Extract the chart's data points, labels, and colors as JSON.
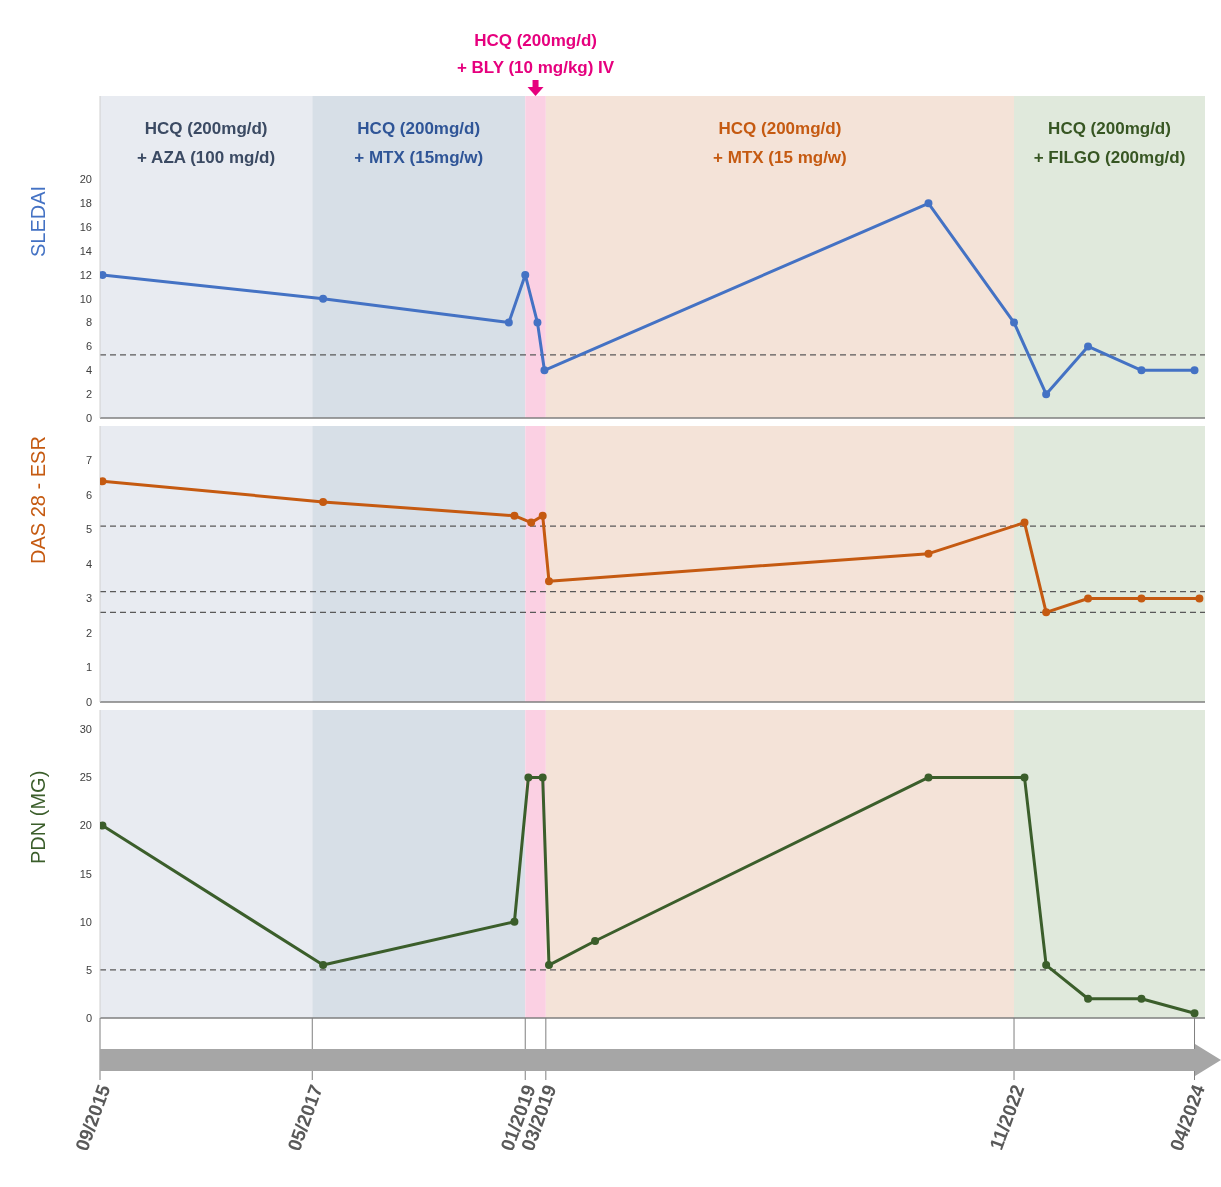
{
  "chart_data": [
    {
      "type": "line",
      "ylabel": "SLEDAI",
      "xlim": [
        "2015-09",
        "2024-05"
      ],
      "ylim": [
        0,
        27
      ],
      "yticks": [
        0,
        2,
        4,
        6,
        8,
        10,
        12,
        14,
        16,
        18,
        20
      ],
      "tick_labels": "y",
      "marker": "circle",
      "line_style": "solid",
      "series": [
        {
          "color": "#4472c4",
          "x": [
            "2015-09-08",
            "2017-06",
            "2018-11-15",
            "2019-01",
            "2019-02-05",
            "2019-02-25",
            "2022-03",
            "2022-11",
            "2023-02",
            "2023-06",
            "2023-11",
            "2024-04"
          ],
          "values": [
            12,
            10,
            8,
            12,
            8,
            4,
            18,
            8,
            2,
            6,
            4,
            4
          ]
        }
      ],
      "ref_lines": [
        {
          "axis": "y",
          "value": 5.3,
          "label": null,
          "color": "#595959",
          "line_style": "dashed"
        }
      ],
      "bands": [
        {
          "axis": "x",
          "from": "2015-09",
          "to": "2017-05",
          "label": "HCQ (200mg/d)\n+ AZA (100 mg/d)",
          "color": "#e8ebf1"
        },
        {
          "axis": "x",
          "from": "2017-05",
          "to": "2019-01",
          "label": "HCQ (200mg/d)\n+ MTX (15mg/w)",
          "color": "#d7dfe7"
        },
        {
          "axis": "x",
          "from": "2019-01",
          "to": "2019-03",
          "label": "HCQ (200mg/d)\n+ BLY (10 mg/kg) IV",
          "color": "#fbd0e3"
        },
        {
          "axis": "x",
          "from": "2019-03",
          "to": "2022-11",
          "label": "HCQ (200mg/d)\n+ MTX (15 mg/w)",
          "color": "#f4e3d8"
        },
        {
          "axis": "x",
          "from": "2022-11",
          "to": "2024-05",
          "label": "HCQ (200mg/d)\n+ FILGO (200mg/d)",
          "color": "#e0e9dc"
        }
      ]
    },
    {
      "type": "line",
      "ylabel": "DAS 28 - ESR",
      "xlim": [
        "2015-09",
        "2024-05"
      ],
      "ylim": [
        0,
        8
      ],
      "yticks": [
        0,
        1,
        2,
        3,
        4,
        5,
        6,
        7
      ],
      "tick_labels": "y",
      "marker": "circle",
      "line_style": "solid",
      "series": [
        {
          "color": "#c55a11",
          "x": [
            "2015-09-08",
            "2017-06",
            "2018-12",
            "2019-01-18",
            "2019-02-20",
            "2019-03-10",
            "2022-03",
            "2022-12",
            "2023-02",
            "2023-06",
            "2023-11",
            "2024-04-15"
          ],
          "values": [
            6.4,
            5.8,
            5.4,
            5.2,
            5.4,
            3.5,
            4.3,
            5.2,
            2.6,
            3,
            3,
            3
          ]
        }
      ],
      "ref_lines": [
        {
          "axis": "y",
          "value": 5.1,
          "label": null,
          "color": "#595959",
          "line_style": "dashed"
        },
        {
          "axis": "y",
          "value": 3.2,
          "label": null,
          "color": "#595959",
          "line_style": "dashed"
        },
        {
          "axis": "y",
          "value": 2.6,
          "label": null,
          "color": "#595959",
          "line_style": "dashed"
        }
      ],
      "bands": [
        {
          "axis": "x",
          "from": "2015-09",
          "to": "2017-05",
          "label": null,
          "color": "#e8ebf1"
        },
        {
          "axis": "x",
          "from": "2017-05",
          "to": "2019-01",
          "label": null,
          "color": "#d7dfe7"
        },
        {
          "axis": "x",
          "from": "2019-01",
          "to": "2019-03",
          "label": null,
          "color": "#fbd0e3"
        },
        {
          "axis": "x",
          "from": "2019-03",
          "to": "2022-11",
          "label": null,
          "color": "#f4e3d8"
        },
        {
          "axis": "x",
          "from": "2022-11",
          "to": "2024-05",
          "label": null,
          "color": "#e0e9dc"
        }
      ]
    },
    {
      "type": "line",
      "ylabel": "PDN (MG)",
      "xlim": [
        "2015-09",
        "2024-05"
      ],
      "xticks": [
        {
          "value": "2015-09",
          "label": "09/2015"
        },
        {
          "value": "2017-05",
          "label": "05/2017"
        },
        {
          "value": "2019-01",
          "label": "01/2019"
        },
        {
          "value": "2019-03",
          "label": "03/2019"
        },
        {
          "value": "2022-11",
          "label": "11/2022"
        },
        {
          "value": "2024-04",
          "label": "04/2024"
        }
      ],
      "ylim": [
        0,
        32
      ],
      "yticks": [
        0,
        5,
        10,
        15,
        20,
        25,
        30
      ],
      "marker": "circle",
      "line_style": "solid",
      "series": [
        {
          "color": "#3b5e2b",
          "x": [
            "2015-09-08",
            "2017-06",
            "2018-12",
            "2019-01-10",
            "2019-02-20",
            "2019-03-10",
            "2019-07-20",
            "2022-03",
            "2022-12",
            "2023-02",
            "2023-06",
            "2023-11",
            "2024-04"
          ],
          "values": [
            20,
            5.5,
            10,
            25,
            25,
            5.5,
            8,
            25,
            25,
            5.5,
            2,
            2,
            0.5
          ]
        }
      ],
      "ref_lines": [
        {
          "axis": "y",
          "value": 5,
          "label": null,
          "color": "#595959",
          "line_style": "dashed"
        }
      ],
      "bands": [
        {
          "axis": "x",
          "from": "2015-09",
          "to": "2017-05",
          "label": null,
          "color": "#e8ebf1"
        },
        {
          "axis": "x",
          "from": "2017-05",
          "to": "2019-01",
          "label": null,
          "color": "#d7dfe7"
        },
        {
          "axis": "x",
          "from": "2019-01",
          "to": "2019-03",
          "label": null,
          "color": "#fbd0e3"
        },
        {
          "axis": "x",
          "from": "2019-03",
          "to": "2022-11",
          "label": null,
          "color": "#f4e3d8"
        },
        {
          "axis": "x",
          "from": "2022-11",
          "to": "2024-05",
          "label": null,
          "color": "#e0e9dc"
        }
      ]
    }
  ]
}
